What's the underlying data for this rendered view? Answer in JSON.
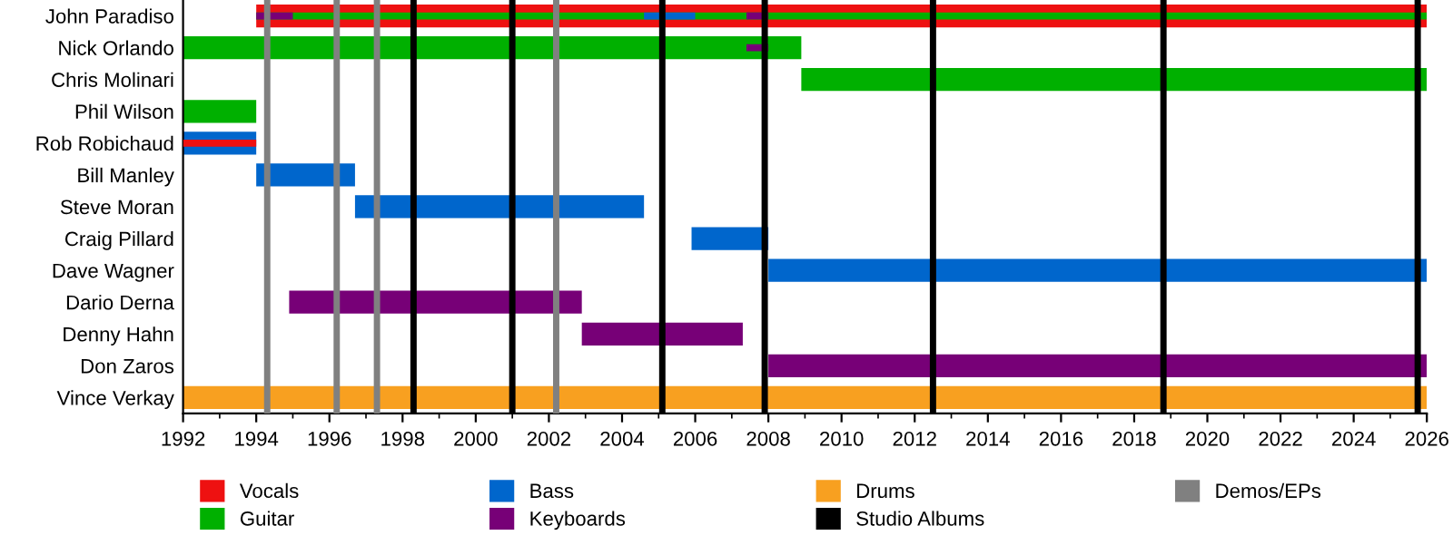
{
  "chart_data": {
    "type": "bar",
    "orientation": "horizontal",
    "categories": [
      "John Paradiso",
      "Nick Orlando",
      "Chris Molinari",
      "Phil Wilson",
      "Rob Robichaud",
      "Bill Manley",
      "Steve Moran",
      "Craig Pillard",
      "Dave Wagner",
      "Dario Derna",
      "Denny Hahn",
      "Don Zaros",
      "Vince Verkay"
    ],
    "series": [
      {
        "name": "Vocals",
        "color": "#ee1111",
        "values": [
          32,
          null,
          null,
          null,
          null,
          null,
          null,
          null,
          null,
          null,
          null,
          null,
          null
        ],
        "base": [
          1994,
          null,
          null,
          null,
          null,
          null,
          null,
          null,
          null,
          null,
          null,
          null,
          null
        ]
      },
      {
        "name": "Guitar",
        "color": "#00b000",
        "values": [
          null,
          16.9,
          17.1,
          2,
          null,
          null,
          null,
          null,
          null,
          null,
          null,
          null,
          null
        ],
        "base": [
          null,
          1992,
          2008.9,
          1992,
          null,
          null,
          null,
          null,
          null,
          null,
          null,
          null,
          null
        ]
      },
      {
        "name": "Bass",
        "color": "#0066cc",
        "values": [
          null,
          null,
          null,
          null,
          2,
          2.7,
          7.9,
          2.1,
          18,
          null,
          null,
          null,
          null
        ],
        "base": [
          null,
          null,
          null,
          null,
          1992,
          1994,
          1996.7,
          2005.9,
          2008,
          null,
          null,
          null,
          null
        ]
      },
      {
        "name": "Keyboards",
        "color": "#770077",
        "values": [
          null,
          null,
          null,
          null,
          null,
          null,
          null,
          null,
          null,
          8,
          4.4,
          18,
          null
        ],
        "base": [
          null,
          null,
          null,
          null,
          null,
          null,
          null,
          null,
          null,
          1994.9,
          2002.9,
          2008,
          null
        ]
      },
      {
        "name": "Drums",
        "color": "#f8a020",
        "values": [
          null,
          null,
          null,
          null,
          null,
          null,
          null,
          null,
          null,
          null,
          null,
          null,
          34
        ],
        "base": [
          null,
          null,
          null,
          null,
          null,
          null,
          null,
          null,
          null,
          null,
          null,
          null,
          1992
        ]
      },
      {
        "color": "#ee1111",
        "values": [
          null,
          null,
          null,
          null,
          2,
          null,
          null,
          null,
          null,
          null,
          null,
          null,
          null
        ],
        "base": [
          null,
          null,
          null,
          null,
          1992,
          null,
          null,
          null,
          null,
          null,
          null,
          null,
          null
        ]
      },
      {
        "color": "#00b000",
        "values": [
          32,
          null,
          null,
          null,
          null,
          null,
          null,
          null,
          null,
          null,
          null,
          null,
          null
        ],
        "base": [
          1994,
          null,
          null,
          null,
          null,
          null,
          null,
          null,
          null,
          null,
          null,
          null,
          null
        ]
      },
      {
        "color": "#0066cc",
        "values": [
          1.4,
          null,
          null,
          null,
          null,
          null,
          null,
          null,
          null,
          null,
          null,
          null,
          null
        ],
        "base": [
          2004.6,
          null,
          null,
          null,
          null,
          null,
          null,
          null,
          null,
          null,
          null,
          null,
          null
        ]
      },
      {
        "color": "#770077",
        "values": [
          1,
          0.6,
          null,
          null,
          null,
          null,
          null,
          null,
          null,
          null,
          null,
          null,
          null
        ],
        "base": [
          1994,
          2007.4,
          null,
          null,
          null,
          null,
          null,
          null,
          null,
          null,
          null,
          null,
          null
        ]
      },
      {
        "color": "#770077",
        "values": [
          0.6,
          null,
          null,
          null,
          null,
          null,
          null,
          null,
          null,
          null,
          null,
          null,
          null
        ],
        "base": [
          2007.4,
          null,
          null,
          null,
          null,
          null,
          null,
          null,
          null,
          null,
          null,
          null,
          null
        ]
      }
    ],
    "xlim": [
      1992,
      2026
    ],
    "xticks": [
      1992,
      1994,
      1996,
      1998,
      2000,
      2002,
      2004,
      2006,
      2008,
      2010,
      2012,
      2014,
      2016,
      2018,
      2020,
      2022,
      2024,
      2026
    ],
    "ref_lines": [
      {
        "axis": "x",
        "value": 1998.3,
        "label": "Studio Albums",
        "color": "#000000"
      },
      {
        "axis": "x",
        "value": 2001.0,
        "color": "#000000"
      },
      {
        "axis": "x",
        "value": 2005.1,
        "color": "#000000"
      },
      {
        "axis": "x",
        "value": 2007.9,
        "color": "#000000"
      },
      {
        "axis": "x",
        "value": 2012.5,
        "color": "#000000"
      },
      {
        "axis": "x",
        "value": 2018.8,
        "color": "#000000"
      },
      {
        "axis": "x",
        "value": 2025.75,
        "color": "#000000"
      },
      {
        "axis": "x",
        "value": 1994.3,
        "label": "Demos/EPs",
        "color": "#808080"
      },
      {
        "axis": "x",
        "value": 1996.2,
        "color": "#808080"
      },
      {
        "axis": "x",
        "value": 1997.3,
        "color": "#808080"
      },
      {
        "axis": "x",
        "value": 2002.2,
        "color": "#808080"
      }
    ],
    "grid": false,
    "legend": "bottom"
  }
}
